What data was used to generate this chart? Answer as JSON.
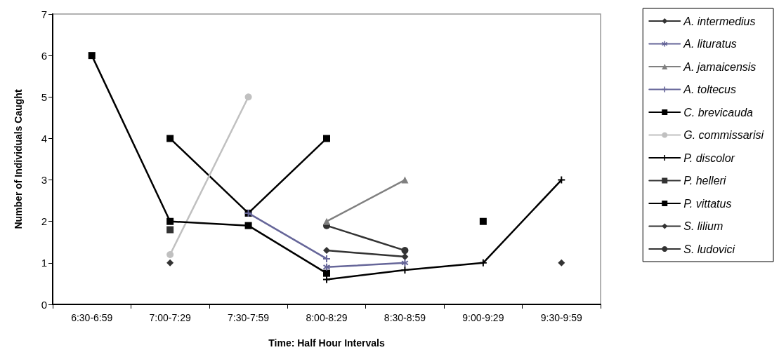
{
  "chart_data": {
    "type": "line",
    "xlabel": "Time: Half Hour Intervals",
    "ylabel": "Number of Individuals Caught",
    "categories": [
      "6:30-6:59",
      "7:00-7:29",
      "7:30-7:59",
      "8:00-8:29",
      "8:30-8:59",
      "9:00-9:29",
      "9:30-9:59"
    ],
    "ylim": [
      0,
      7
    ],
    "yticks": [
      0,
      1,
      2,
      3,
      4,
      5,
      6,
      7
    ],
    "grid": false,
    "legend": "right",
    "line_style": "solid",
    "series": [
      {
        "name": "A. intermedius",
        "color": "#333333",
        "marker": "diamond",
        "values": [
          null,
          1.0,
          null,
          null,
          null,
          null,
          1.0
        ]
      },
      {
        "name": "A. lituratus",
        "color": "#666699",
        "marker": "star",
        "values": [
          null,
          null,
          null,
          0.9,
          1.0,
          null,
          null
        ]
      },
      {
        "name": "A. jamaicensis",
        "color": "#808080",
        "marker": "triangle",
        "values": [
          null,
          null,
          null,
          2.0,
          3.0,
          null,
          null
        ]
      },
      {
        "name": "A. toltecus",
        "color": "#666699",
        "marker": "cross",
        "values": [
          null,
          null,
          2.2,
          1.1,
          null,
          null,
          null
        ]
      },
      {
        "name": "C. brevicauda",
        "color": "#000000",
        "marker": "square",
        "values": [
          6.0,
          2.0,
          1.9,
          0.75,
          null,
          2.0,
          null
        ]
      },
      {
        "name": "G. commissarisi",
        "color": "#c0c0c0",
        "marker": "circle",
        "values": [
          null,
          1.2,
          5.0,
          null,
          null,
          null,
          null
        ]
      },
      {
        "name": "P. discolor",
        "color": "#000000",
        "marker": "cross",
        "values": [
          null,
          null,
          null,
          0.6,
          0.83,
          1.0,
          3.0
        ]
      },
      {
        "name": "P. helleri",
        "color": "#333333",
        "marker": "square",
        "values": [
          null,
          1.8,
          null,
          null,
          null,
          null,
          null
        ]
      },
      {
        "name": "P. vittatus",
        "color": "#000000",
        "marker": "square",
        "values": [
          null,
          4.0,
          2.2,
          4.0,
          null,
          null,
          null
        ]
      },
      {
        "name": "S. lilium",
        "color": "#333333",
        "marker": "diamond",
        "values": [
          null,
          null,
          null,
          1.3,
          1.15,
          null,
          null
        ]
      },
      {
        "name": "S. ludovici",
        "color": "#333333",
        "marker": "circle",
        "values": [
          null,
          null,
          null,
          1.9,
          1.3,
          null,
          null
        ]
      }
    ]
  }
}
